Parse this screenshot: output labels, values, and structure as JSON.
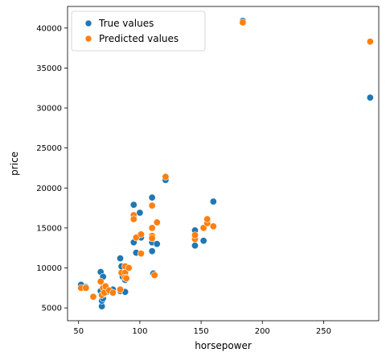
{
  "chart_data": {
    "type": "scatter",
    "xlabel": "horsepower",
    "ylabel": "price",
    "xlim": [
      41,
      295
    ],
    "ylim": [
      3400,
      42700
    ],
    "xticks": [
      50,
      100,
      150,
      200,
      250
    ],
    "yticks": [
      5000,
      10000,
      15000,
      20000,
      25000,
      30000,
      35000,
      40000
    ],
    "grid": false,
    "legend_position": "top-left",
    "series": [
      {
        "name": "True values",
        "color": "#1f77b4",
        "points": [
          [
            52,
            7900
          ],
          [
            56,
            7600
          ],
          [
            69,
            5200
          ],
          [
            69,
            5900
          ],
          [
            70,
            6200
          ],
          [
            70,
            6700
          ],
          [
            68,
            9500
          ],
          [
            70,
            8900
          ],
          [
            68,
            7100
          ],
          [
            73,
            7000
          ],
          [
            78,
            7300
          ],
          [
            84,
            7100
          ],
          [
            84,
            11200
          ],
          [
            85,
            10200
          ],
          [
            86,
            8900
          ],
          [
            88,
            8500
          ],
          [
            88,
            7000
          ],
          [
            91,
            10000
          ],
          [
            95,
            13200
          ],
          [
            95,
            17900
          ],
          [
            97,
            11900
          ],
          [
            100,
            16900
          ],
          [
            101,
            13800
          ],
          [
            110,
            18800
          ],
          [
            110,
            13200
          ],
          [
            110,
            12100
          ],
          [
            111,
            9300
          ],
          [
            114,
            13000
          ],
          [
            121,
            21000
          ],
          [
            145,
            12800
          ],
          [
            145,
            13900
          ],
          [
            145,
            14700
          ],
          [
            152,
            13400
          ],
          [
            155,
            15900
          ],
          [
            160,
            18300
          ],
          [
            184,
            40900
          ],
          [
            288,
            31300
          ]
        ]
      },
      {
        "name": "Predicted values",
        "color": "#ff7f0e",
        "points": [
          [
            52,
            7500
          ],
          [
            56,
            7500
          ],
          [
            62,
            6400
          ],
          [
            68,
            8300
          ],
          [
            69,
            6600
          ],
          [
            70,
            7500
          ],
          [
            71,
            6900
          ],
          [
            72,
            7700
          ],
          [
            75,
            7200
          ],
          [
            78,
            6900
          ],
          [
            84,
            7300
          ],
          [
            85,
            9400
          ],
          [
            88,
            9400
          ],
          [
            88,
            10200
          ],
          [
            88,
            8800
          ],
          [
            89,
            8700
          ],
          [
            91,
            10000
          ],
          [
            95,
            16600
          ],
          [
            95,
            16100
          ],
          [
            97,
            13800
          ],
          [
            101,
            14200
          ],
          [
            101,
            11800
          ],
          [
            110,
            17800
          ],
          [
            110,
            15000
          ],
          [
            110,
            14000
          ],
          [
            110,
            13700
          ],
          [
            112,
            9100
          ],
          [
            114,
            15700
          ],
          [
            121,
            21400
          ],
          [
            145,
            13600
          ],
          [
            145,
            14100
          ],
          [
            152,
            15000
          ],
          [
            155,
            15600
          ],
          [
            155,
            16100
          ],
          [
            160,
            15200
          ],
          [
            184,
            40700
          ],
          [
            288,
            38300
          ]
        ]
      }
    ]
  }
}
